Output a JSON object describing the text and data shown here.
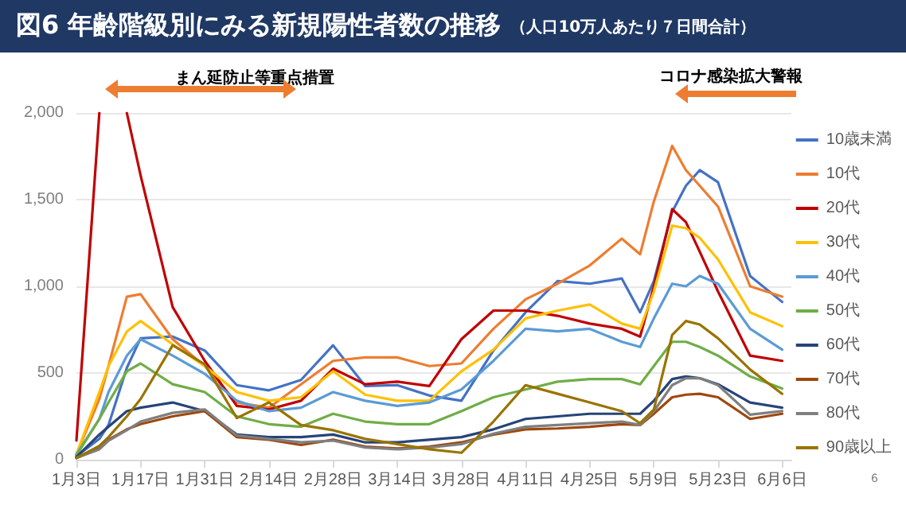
{
  "chart_data": {
    "type": "line",
    "title": "図6 年齢階級別にみる新規陽性者数の推移",
    "subtitle": "（人口10万人あたり７日間合計）",
    "annotations": [
      "まん延防止等重点措置",
      "コロナ感染拡大警報",
      "6"
    ],
    "x": [
      "--01-03",
      "--01-08",
      "--01-10",
      "--01-14",
      "--01-17",
      "--01-24",
      "--01-31",
      "--02-07",
      "--02-14",
      "--02-21",
      "--02-28",
      "--03-07",
      "--03-14",
      "--03-21",
      "--03-28",
      "--04-04",
      "--04-11",
      "--04-18",
      "--04-25",
      "--05-02",
      "--05-06",
      "--05-09",
      "--05-13",
      "--05-16",
      "--05-19",
      "--05-23",
      "--05-30",
      "--06-06"
    ],
    "xlim": [
      "--01-03",
      "--06-08"
    ],
    "xticks": [
      {
        "value": "--01-03",
        "label": "1月3日"
      },
      {
        "value": "--01-17",
        "label": "1月17日"
      },
      {
        "value": "--01-31",
        "label": "1月31日"
      },
      {
        "value": "--02-14",
        "label": "2月14日"
      },
      {
        "value": "--02-28",
        "label": "2月28日"
      },
      {
        "value": "--03-14",
        "label": "3月14日"
      },
      {
        "value": "--03-28",
        "label": "3月28日"
      },
      {
        "value": "--04-11",
        "label": "4月11日"
      },
      {
        "value": "--04-25",
        "label": "4月25日"
      },
      {
        "value": "--05-09",
        "label": "5月9日"
      },
      {
        "value": "--05-23",
        "label": "5月23日"
      },
      {
        "value": "--06-06",
        "label": "6月6日"
      }
    ],
    "ylim": [
      0,
      2000
    ],
    "yticks": [
      0,
      500,
      {
        "value": 1000,
        "label": "1,000"
      },
      {
        "value": 1500,
        "label": "1,500"
      },
      {
        "value": 2000,
        "label": "2,000"
      }
    ],
    "grid": "y",
    "legend": "right",
    "marker": "none",
    "line_style": "solid",
    "series": [
      {
        "name": "10歳未満",
        "color": "#4472c4",
        "values": [
          20,
          120,
          200,
          530,
          700,
          710,
          630,
          430,
          400,
          460,
          660,
          425,
          430,
          370,
          340,
          630,
          850,
          1030,
          1015,
          1045,
          850,
          1030,
          1430,
          1580,
          1670,
          1600,
          1060,
          910
        ]
      },
      {
        "name": "10代",
        "color": "#ed7d31",
        "values": [
          30,
          350,
          540,
          940,
          955,
          695,
          540,
          330,
          300,
          435,
          570,
          590,
          590,
          540,
          555,
          755,
          925,
          1015,
          1120,
          1275,
          1185,
          1490,
          1810,
          1670,
          1580,
          1460,
          1000,
          940
        ]
      },
      {
        "name": "20代",
        "color": "#c00000",
        "values": [
          110,
          2000,
          null,
          2000,
          1640,
          880,
          570,
          310,
          290,
          340,
          525,
          435,
          450,
          425,
          695,
          860,
          860,
          830,
          785,
          755,
          710,
          1000,
          1445,
          1370,
          1200,
          970,
          600,
          570
        ]
      },
      {
        "name": "30代",
        "color": "#ffc000",
        "values": [
          30,
          390,
          540,
          740,
          800,
          665,
          540,
          390,
          340,
          360,
          510,
          375,
          340,
          340,
          510,
          635,
          815,
          860,
          895,
          785,
          755,
          970,
          1350,
          1335,
          1280,
          1155,
          850,
          770
        ]
      },
      {
        "name": "40代",
        "color": "#5b9bd5",
        "values": [
          30,
          235,
          390,
          600,
          695,
          600,
          495,
          340,
          280,
          300,
          390,
          340,
          310,
          330,
          405,
          570,
          755,
          740,
          755,
          680,
          650,
          815,
          1015,
          1000,
          1060,
          1015,
          755,
          635
        ]
      },
      {
        "name": "50代",
        "color": "#70ad47",
        "values": [
          25,
          235,
          330,
          510,
          555,
          435,
          390,
          250,
          205,
          190,
          265,
          220,
          205,
          205,
          280,
          360,
          405,
          450,
          465,
          465,
          435,
          540,
          680,
          680,
          650,
          600,
          480,
          410
        ]
      },
      {
        "name": "60代",
        "color": "#264478",
        "values": [
          15,
          145,
          190,
          280,
          300,
          330,
          280,
          145,
          130,
          130,
          145,
          100,
          100,
          115,
          130,
          175,
          235,
          250,
          265,
          265,
          265,
          340,
          465,
          480,
          470,
          435,
          330,
          300
        ]
      },
      {
        "name": "70代",
        "color": "#9e480e",
        "values": [
          10,
          65,
          115,
          175,
          205,
          250,
          280,
          130,
          115,
          85,
          115,
          75,
          65,
          75,
          100,
          145,
          175,
          180,
          190,
          205,
          200,
          265,
          360,
          375,
          380,
          360,
          235,
          265
        ]
      },
      {
        "name": "80代",
        "color": "#7f7f7f",
        "values": [
          10,
          60,
          110,
          170,
          220,
          270,
          290,
          140,
          120,
          100,
          110,
          70,
          60,
          70,
          90,
          150,
          190,
          200,
          210,
          220,
          200,
          280,
          430,
          470,
          470,
          430,
          260,
          280
        ]
      },
      {
        "name": "90歳以上",
        "color": "#997300",
        "values": [
          10,
          80,
          130,
          250,
          350,
          660,
          550,
          240,
          330,
          200,
          170,
          120,
          90,
          60,
          40,
          220,
          430,
          380,
          330,
          280,
          210,
          290,
          720,
          800,
          780,
          700,
          520,
          380
        ]
      }
    ]
  }
}
